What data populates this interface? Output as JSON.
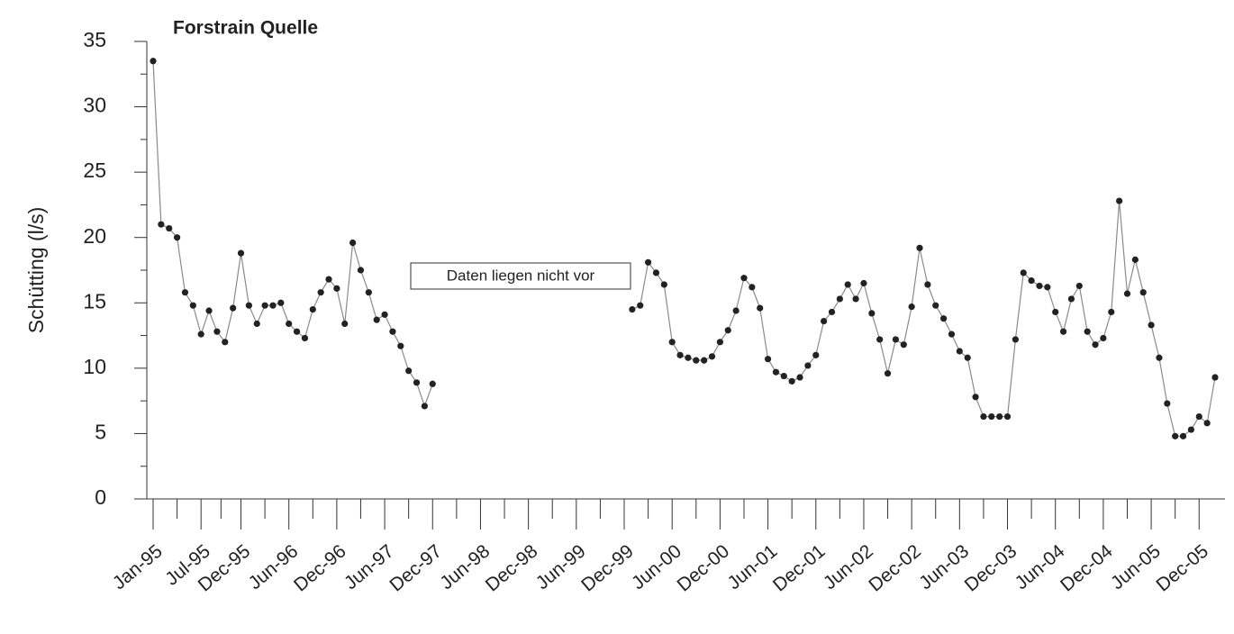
{
  "chart_data": {
    "type": "line",
    "title": "Forstrain Quelle",
    "y_label": "Schütting (l/s)",
    "annotation": "Daten liegen nicht vor",
    "categories": [
      "Jan-95",
      null,
      null,
      null,
      null,
      null,
      "Jul-95",
      null,
      null,
      null,
      null,
      "Dec-95",
      null,
      null,
      null,
      null,
      null,
      "Jun-96",
      null,
      null,
      null,
      null,
      null,
      "Dec-96",
      null,
      null,
      null,
      null,
      null,
      "Jun-97",
      null,
      null,
      null,
      null,
      null,
      "Dec-97",
      null,
      null,
      null,
      null,
      null,
      "Jun-98",
      null,
      null,
      null,
      null,
      null,
      "Dec-98",
      null,
      null,
      null,
      null,
      null,
      "Jun-99",
      null,
      null,
      null,
      null,
      null,
      "Dec-99",
      null,
      null,
      null,
      null,
      null,
      "Jun-00",
      null,
      null,
      null,
      null,
      null,
      "Dec-00",
      null,
      null,
      null,
      null,
      null,
      "Jun-01",
      null,
      null,
      null,
      null,
      null,
      "Dec-01",
      null,
      null,
      null,
      null,
      null,
      "Jun-02",
      null,
      null,
      null,
      null,
      null,
      "Dec-02",
      null,
      null,
      null,
      null,
      null,
      "Jun-03",
      null,
      null,
      null,
      null,
      null,
      "Dec-03",
      null,
      null,
      null,
      null,
      null,
      "Jun-04",
      null,
      null,
      null,
      null,
      null,
      "Dec-04",
      null,
      null,
      null,
      null,
      null,
      "Jun-05",
      null,
      null,
      null,
      null,
      null,
      "Dec-05",
      null,
      null
    ],
    "series": [
      {
        "name": "Schütting",
        "color": "#222222",
        "line_color": "#8a8a8a",
        "values": [
          33.5,
          21.0,
          20.7,
          20.0,
          15.8,
          14.8,
          12.6,
          14.4,
          12.8,
          12.0,
          14.6,
          18.8,
          14.8,
          13.4,
          14.8,
          14.8,
          15.0,
          13.4,
          12.8,
          12.3,
          14.5,
          15.8,
          16.8,
          16.1,
          13.4,
          19.6,
          17.5,
          15.8,
          13.7,
          14.1,
          12.8,
          11.7,
          9.8,
          8.9,
          7.1,
          8.8,
          null,
          null,
          null,
          null,
          null,
          null,
          null,
          null,
          null,
          null,
          null,
          null,
          null,
          null,
          null,
          null,
          null,
          null,
          null,
          null,
          null,
          null,
          null,
          null,
          14.5,
          14.8,
          18.1,
          17.3,
          16.4,
          12.0,
          11.0,
          10.8,
          10.6,
          10.6,
          10.9,
          12.0,
          12.9,
          14.4,
          16.9,
          16.2,
          14.6,
          10.7,
          9.7,
          9.4,
          9.0,
          9.3,
          10.2,
          11.0,
          13.6,
          14.3,
          15.3,
          16.4,
          15.3,
          16.5,
          14.2,
          12.2,
          9.6,
          12.2,
          11.8,
          14.7,
          19.2,
          16.4,
          14.8,
          13.8,
          12.6,
          11.3,
          10.8,
          7.8,
          6.3,
          6.3,
          6.3,
          6.3,
          12.2,
          17.3,
          16.7,
          16.3,
          16.2,
          14.3,
          12.8,
          15.3,
          16.3,
          12.8,
          11.8,
          12.3,
          14.3,
          22.8,
          15.7,
          18.3,
          15.8,
          13.3,
          10.8,
          7.3,
          4.8,
          4.8,
          5.3,
          6.3,
          5.8,
          9.3
        ]
      }
    ],
    "ylim": [
      0,
      35
    ],
    "yticks": [
      0,
      5,
      10,
      15,
      20,
      25,
      30,
      35
    ],
    "grid": false
  }
}
